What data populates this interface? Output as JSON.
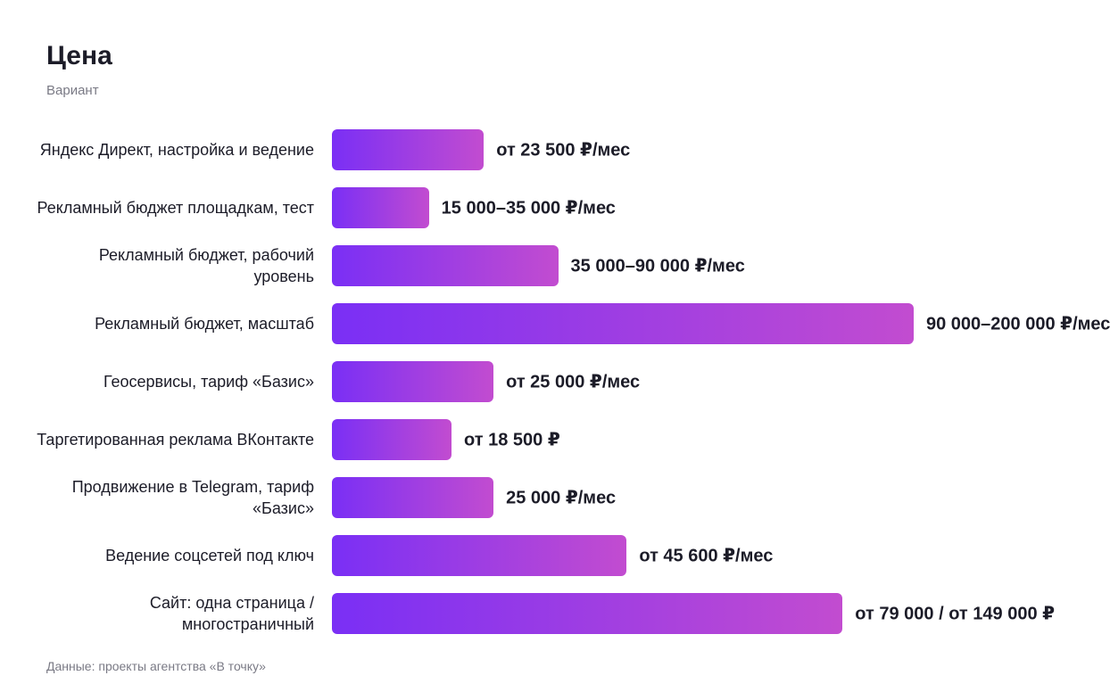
{
  "chart_data": {
    "type": "bar",
    "orientation": "horizontal",
    "title": "Цена",
    "subtitle": "Вариант",
    "source": "Данные: проекты агентства «В точку»",
    "categories": [
      "Яндекс Директ, настройка и ведение",
      "Рекламный бюджет площадкам, тест",
      "Рекламный бюджет, рабочий уровень",
      "Рекламный бюджет, масштаб",
      "Геосервисы, тариф «Базис»",
      "Таргетированная реклама ВКонтакте",
      "Продвижение в Telegram, тариф «Базис»",
      "Ведение соцсетей под ключ",
      "Сайт: одна страница / многостраничный"
    ],
    "values": [
      23500,
      15000,
      35000,
      90000,
      25000,
      18500,
      25000,
      45600,
      79000
    ],
    "value_labels": [
      "от 23 500 ₽/мес",
      "15 000–35 000 ₽/мес",
      "35 000–90 000 ₽/мес",
      "90 000–200 000 ₽/мес",
      "от 25 000 ₽/мес",
      "от 18 500 ₽",
      "25 000 ₽/мес",
      "от 45 600 ₽/мес",
      "от 79 000 / от 149 000 ₽"
    ],
    "color": "#7a2ff5",
    "color_end": "#c24cd0"
  }
}
